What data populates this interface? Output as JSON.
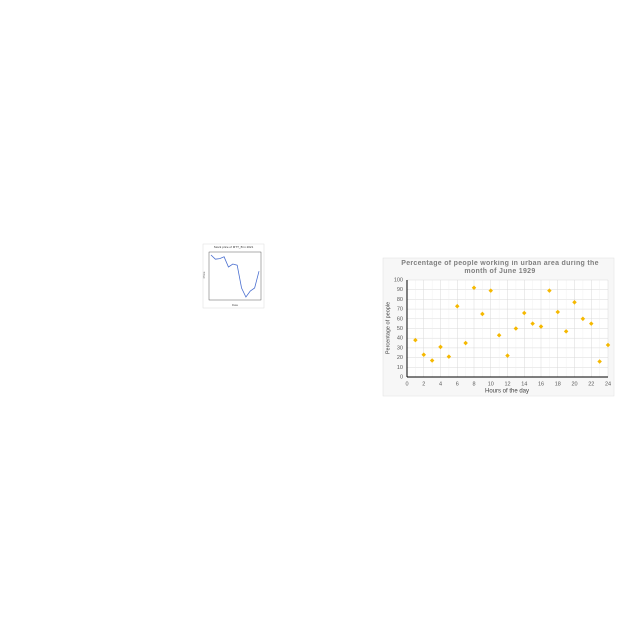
{
  "chart_data": [
    {
      "type": "line",
      "title": "Stock price of MTT_B in 2021",
      "xlabel": "Date",
      "ylabel": "Price",
      "categories": [
        null,
        null,
        null,
        null,
        null,
        null,
        null,
        null,
        null,
        null,
        null,
        null
      ],
      "series": [
        {
          "name": "MTT_B",
          "color": "#4a6fd0",
          "values": [
            95,
            88,
            89,
            92,
            75,
            80,
            78,
            40,
            25,
            35,
            40,
            68
          ]
        }
      ],
      "ylim": [
        20,
        100
      ]
    },
    {
      "type": "scatter",
      "title": "Percentage of people working in urban area during the month of June 1929",
      "xlabel": "Hours of the day",
      "ylabel": "Percentage of people",
      "x": [
        1,
        2,
        3,
        4,
        5,
        6,
        7,
        8,
        9,
        10,
        11,
        12,
        13,
        14,
        15,
        16,
        17,
        18,
        19,
        20,
        21,
        22,
        23,
        24
      ],
      "series": [
        {
          "name": "Percentage",
          "color": "#f5b800",
          "values": [
            38,
            23,
            17,
            31,
            21,
            73,
            35,
            92,
            65,
            89,
            43,
            22,
            50,
            66,
            55,
            52,
            89,
            67,
            47,
            77,
            60,
            55,
            16,
            33
          ]
        }
      ],
      "xlim": [
        0,
        24
      ],
      "xticks": [
        0,
        2,
        4,
        6,
        8,
        10,
        12,
        14,
        16,
        18,
        20,
        22,
        24
      ],
      "ylim": [
        0,
        100
      ],
      "yticks": [
        0,
        10,
        20,
        30,
        40,
        50,
        60,
        70,
        80,
        90,
        100
      ],
      "grid": true
    }
  ]
}
